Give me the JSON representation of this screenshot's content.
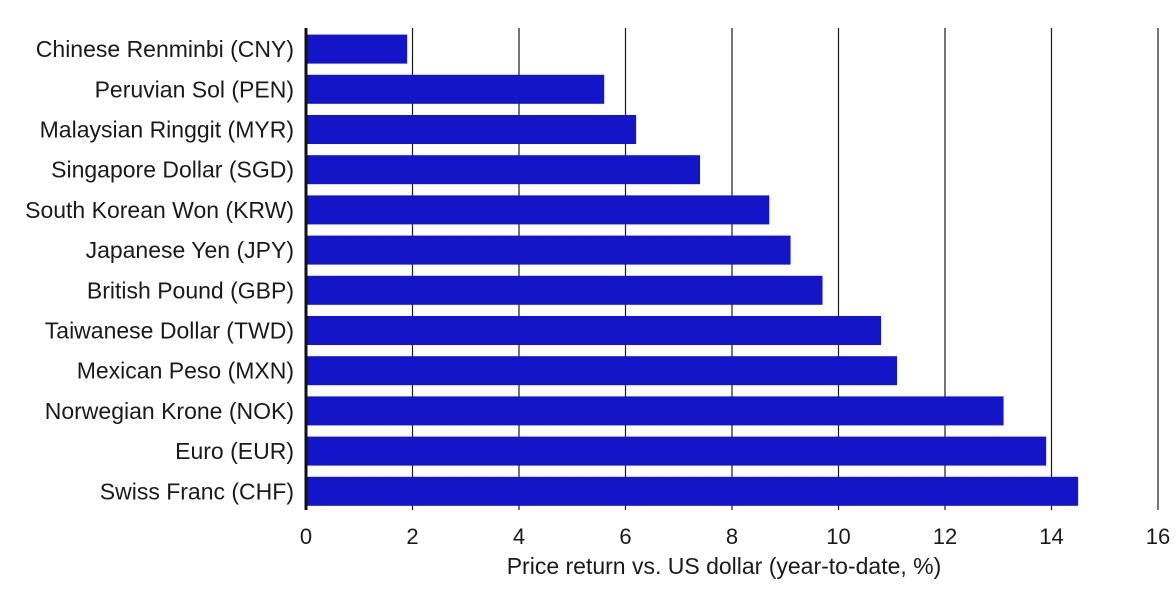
{
  "chart_data": {
    "type": "bar",
    "orientation": "horizontal",
    "categories": [
      "Chinese Renminbi (CNY)",
      "Peruvian Sol (PEN)",
      "Malaysian Ringgit (MYR)",
      "Singapore Dollar (SGD)",
      "South Korean Won (KRW)",
      "Japanese Yen (JPY)",
      "British Pound (GBP)",
      "Taiwanese Dollar (TWD)",
      "Mexican Peso (MXN)",
      "Norwegian Krone (NOK)",
      "Euro (EUR)",
      "Swiss Franc (CHF)"
    ],
    "values": [
      1.9,
      5.6,
      6.2,
      7.4,
      8.7,
      9.1,
      9.7,
      10.8,
      11.1,
      13.1,
      13.9,
      14.5
    ],
    "xlabel": "Price return vs. US dollar (year-to-date, %)",
    "xlim": [
      0,
      16
    ],
    "xticks": [
      0,
      2,
      4,
      6,
      8,
      10,
      12,
      14,
      16
    ],
    "bar_color": "#1414c8",
    "grid": "vertical",
    "grid_color": "#1a1a1a"
  }
}
